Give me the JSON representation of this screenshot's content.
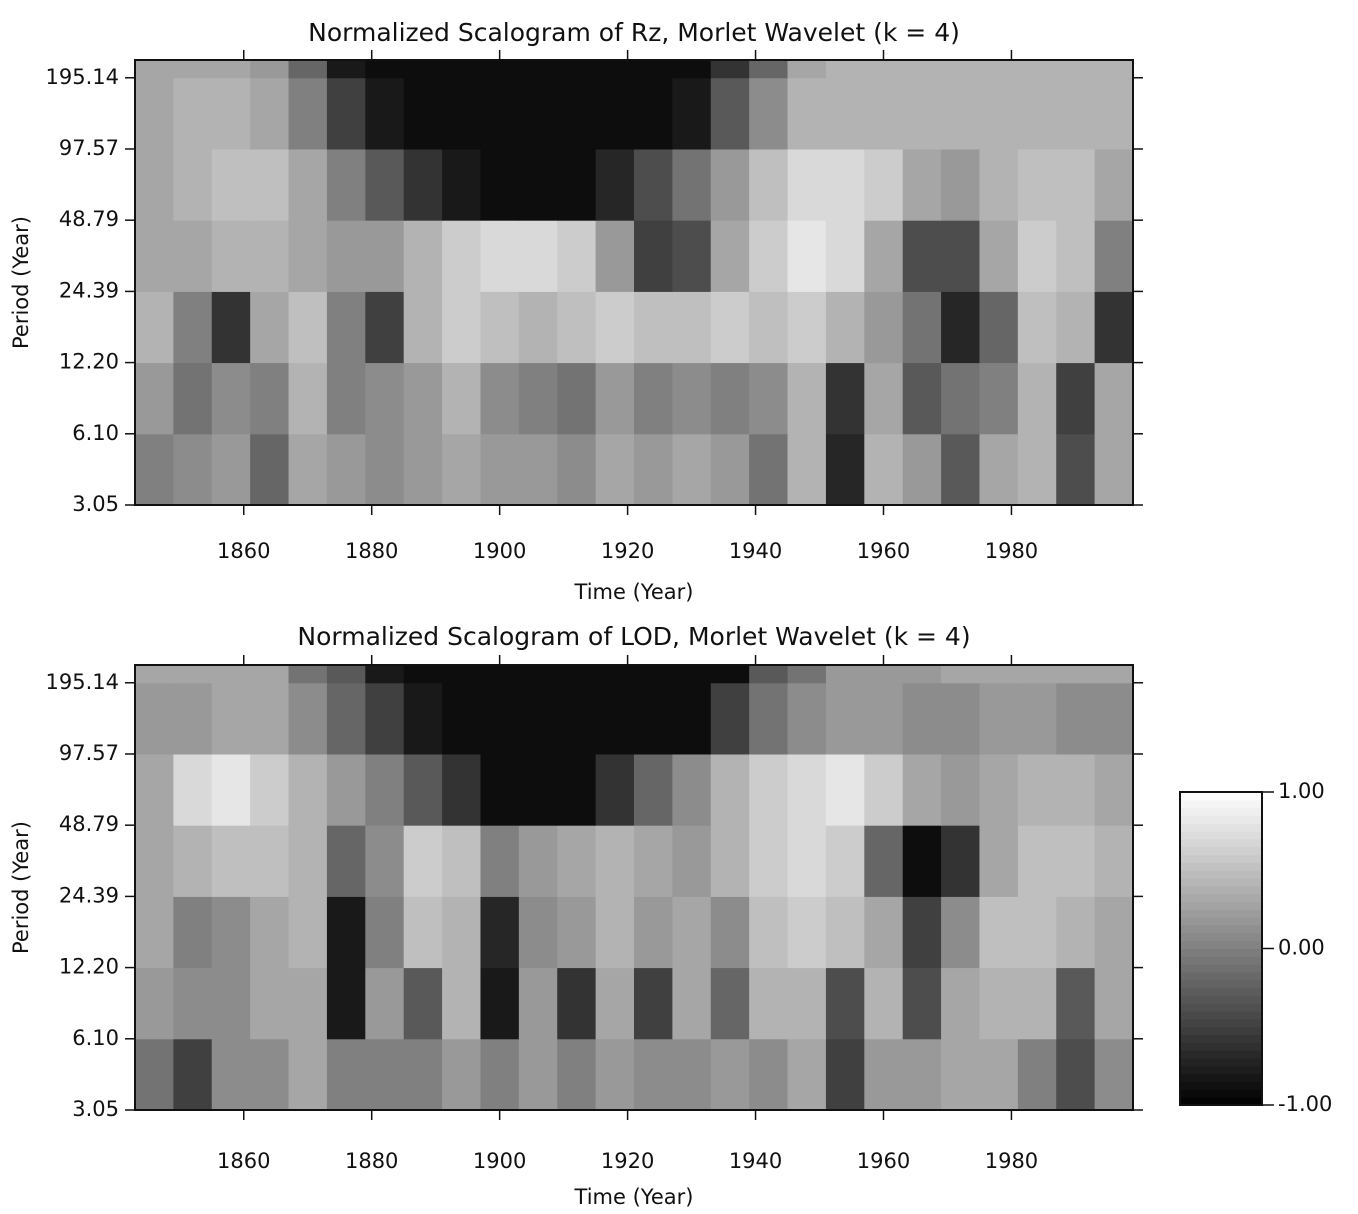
{
  "chart_data": [
    {
      "type": "heatmap",
      "title": "Normalized Scalogram of Rz, Morlet Wavelet (k = 4)",
      "xlabel": "Time (Year)",
      "ylabel": "Period (Year)",
      "log_y": true,
      "xlim": [
        1843,
        1999
      ],
      "ylim": [
        3.05,
        232
      ],
      "xticks": [
        1860,
        1880,
        1900,
        1920,
        1940,
        1960,
        1980
      ],
      "yticks": [
        3.05,
        {
          "value": 6.1,
          "label": "6.10"
        },
        {
          "value": 12.2,
          "label": "12.20"
        },
        24.39,
        48.79,
        97.57,
        195.14
      ],
      "x_edges": [
        1843,
        1849,
        1855,
        1861,
        1867,
        1873,
        1879,
        1885,
        1891,
        1897,
        1903,
        1909,
        1915,
        1921,
        1927,
        1933,
        1939,
        1945,
        1951,
        1957,
        1963,
        1969,
        1975,
        1981,
        1987,
        1993,
        1999
      ],
      "y_edges": [
        3.05,
        6.1,
        12.2,
        24.39,
        48.79,
        97.57,
        195.14,
        232
      ],
      "z": [
        [
          0.0,
          0.1,
          0.2,
          -0.2,
          0.3,
          0.2,
          0.1,
          0.2,
          0.3,
          0.2,
          0.2,
          0.1,
          0.3,
          0.2,
          0.3,
          0.2,
          -0.1,
          0.4,
          -0.7,
          0.4,
          0.2,
          -0.3,
          0.3,
          0.4,
          -0.4,
          0.3
        ],
        [
          0.2,
          -0.1,
          0.1,
          0.0,
          0.4,
          0.0,
          0.1,
          0.2,
          0.4,
          0.1,
          0.0,
          -0.1,
          0.2,
          0.0,
          0.1,
          0.0,
          0.1,
          0.4,
          -0.6,
          0.3,
          -0.3,
          -0.1,
          0.0,
          0.4,
          -0.5,
          0.3
        ],
        [
          0.4,
          0.0,
          -0.6,
          0.3,
          0.5,
          0.0,
          -0.5,
          0.4,
          0.6,
          0.5,
          0.4,
          0.5,
          0.6,
          0.5,
          0.5,
          0.6,
          0.5,
          0.6,
          0.4,
          0.2,
          -0.1,
          -0.7,
          -0.2,
          0.5,
          0.4,
          -0.6
        ],
        [
          0.3,
          0.3,
          0.4,
          0.4,
          0.3,
          0.2,
          0.2,
          0.4,
          0.6,
          0.7,
          0.7,
          0.6,
          0.2,
          -0.5,
          -0.4,
          0.3,
          0.6,
          0.8,
          0.7,
          0.3,
          -0.4,
          -0.4,
          0.3,
          0.6,
          0.5,
          0.0
        ],
        [
          0.3,
          0.4,
          0.5,
          0.5,
          0.3,
          0.0,
          -0.3,
          -0.6,
          -0.8,
          -0.9,
          -0.9,
          -0.9,
          -0.7,
          -0.4,
          -0.1,
          0.2,
          0.5,
          0.7,
          0.7,
          0.6,
          0.3,
          0.2,
          0.4,
          0.5,
          0.5,
          0.3
        ],
        [
          0.3,
          0.4,
          0.4,
          0.3,
          0.0,
          -0.5,
          -0.8,
          -0.9,
          -0.9,
          -0.9,
          -0.9,
          -0.9,
          -0.9,
          -0.9,
          -0.8,
          -0.3,
          0.1,
          0.4,
          0.4,
          0.4,
          0.4,
          0.4,
          0.4,
          0.4,
          0.4,
          0.4
        ],
        [
          0.3,
          0.3,
          0.3,
          0.2,
          -0.2,
          -0.8,
          -0.9,
          -0.9,
          -0.9,
          -0.9,
          -0.9,
          -0.9,
          -0.9,
          -0.9,
          -0.9,
          -0.6,
          -0.2,
          0.3,
          0.4,
          0.4,
          0.4,
          0.4,
          0.4,
          0.4,
          0.4,
          0.4
        ]
      ]
    },
    {
      "type": "heatmap",
      "title": "Normalized Scalogram of LOD, Morlet Wavelet (k = 4)",
      "xlabel": "Time (Year)",
      "ylabel": "Period (Year)",
      "log_y": true,
      "xlim": [
        1843,
        1999
      ],
      "ylim": [
        3.05,
        232
      ],
      "xticks": [
        1860,
        1880,
        1900,
        1920,
        1940,
        1960,
        1980
      ],
      "yticks": [
        3.05,
        {
          "value": 6.1,
          "label": "6.10"
        },
        {
          "value": 12.2,
          "label": "12.20"
        },
        24.39,
        48.79,
        97.57,
        195.14
      ],
      "x_edges": [
        1843,
        1849,
        1855,
        1861,
        1867,
        1873,
        1879,
        1885,
        1891,
        1897,
        1903,
        1909,
        1915,
        1921,
        1927,
        1933,
        1939,
        1945,
        1951,
        1957,
        1963,
        1969,
        1975,
        1981,
        1987,
        1993,
        1999
      ],
      "y_edges": [
        3.05,
        6.1,
        12.2,
        24.39,
        48.79,
        97.57,
        195.14,
        232
      ],
      "z": [
        [
          -0.1,
          -0.5,
          0.1,
          0.1,
          0.3,
          0.0,
          0.0,
          0.0,
          0.2,
          0.0,
          0.2,
          0.0,
          0.2,
          0.1,
          0.1,
          0.2,
          0.1,
          0.3,
          -0.5,
          0.2,
          0.2,
          0.3,
          0.3,
          0.0,
          -0.4,
          0.1
        ],
        [
          0.2,
          0.1,
          0.1,
          0.3,
          0.3,
          -0.8,
          0.2,
          -0.3,
          0.4,
          -0.8,
          0.2,
          -0.6,
          0.3,
          -0.5,
          0.3,
          -0.2,
          0.4,
          0.4,
          -0.4,
          0.4,
          -0.4,
          0.3,
          0.4,
          0.4,
          -0.3,
          0.3
        ],
        [
          0.3,
          0.0,
          0.1,
          0.3,
          0.4,
          -0.8,
          0.0,
          0.5,
          0.4,
          -0.7,
          0.1,
          0.2,
          0.4,
          0.2,
          0.3,
          0.1,
          0.5,
          0.6,
          0.5,
          0.3,
          -0.5,
          0.1,
          0.5,
          0.5,
          0.4,
          0.3
        ],
        [
          0.3,
          0.4,
          0.5,
          0.5,
          0.4,
          -0.2,
          0.1,
          0.6,
          0.5,
          0.0,
          0.2,
          0.3,
          0.4,
          0.3,
          0.2,
          0.4,
          0.6,
          0.7,
          0.6,
          -0.2,
          -0.9,
          -0.6,
          0.3,
          0.5,
          0.5,
          0.4
        ],
        [
          0.3,
          0.7,
          0.8,
          0.6,
          0.4,
          0.2,
          0.0,
          -0.3,
          -0.6,
          -0.9,
          -0.9,
          -0.9,
          -0.6,
          -0.2,
          0.1,
          0.4,
          0.6,
          0.7,
          0.8,
          0.6,
          0.3,
          0.2,
          0.3,
          0.4,
          0.4,
          0.3
        ],
        [
          0.2,
          0.2,
          0.3,
          0.3,
          0.1,
          -0.2,
          -0.5,
          -0.8,
          -0.9,
          -0.9,
          -0.9,
          -0.9,
          -0.9,
          -0.9,
          -0.9,
          -0.5,
          -0.1,
          0.1,
          0.2,
          0.2,
          0.1,
          0.1,
          0.2,
          0.2,
          0.1,
          0.1
        ],
        [
          0.3,
          0.3,
          0.3,
          0.3,
          -0.1,
          -0.3,
          -0.8,
          -0.9,
          -0.9,
          -0.9,
          -0.9,
          -0.9,
          -0.9,
          -0.9,
          -0.9,
          -0.9,
          -0.3,
          -0.1,
          0.2,
          0.2,
          0.2,
          0.3,
          0.3,
          0.3,
          0.3,
          0.3
        ]
      ]
    }
  ],
  "colorbar": {
    "lim": [
      -1,
      1
    ],
    "colors": [
      "#000000",
      "#ffffff"
    ],
    "ticks": [
      {
        "value": 1,
        "label": "1.00"
      },
      {
        "value": 0,
        "label": "0.00"
      },
      {
        "value": -1,
        "label": "-1.00"
      }
    ]
  }
}
